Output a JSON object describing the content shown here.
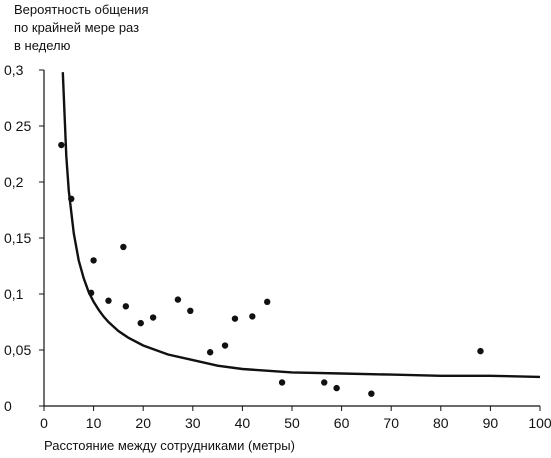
{
  "chart_data": {
    "type": "scatter",
    "ylabel_lines": [
      "Вероятность общения",
      "по крайней мере раз",
      "в неделю"
    ],
    "xlabel": "Расстояние между сотрудниками (метры)",
    "xlim": [
      0,
      100
    ],
    "ylim": [
      0,
      0.3
    ],
    "x_ticks": [
      0,
      10,
      20,
      30,
      40,
      50,
      60,
      70,
      80,
      90,
      100
    ],
    "x_tick_labels": [
      "0",
      "10",
      "20",
      "30",
      "40",
      "50",
      "60",
      "70",
      "80",
      "90",
      "100"
    ],
    "y_ticks": [
      0,
      0.05,
      0.1,
      0.15,
      0.2,
      0.25,
      0.3
    ],
    "y_tick_labels": [
      "0",
      "0,05",
      "0,1",
      "0,15",
      "0,2",
      "0 25",
      "0,3"
    ],
    "grid": false,
    "points": [
      {
        "x": 3.5,
        "y": 0.233
      },
      {
        "x": 5.5,
        "y": 0.185
      },
      {
        "x": 9.5,
        "y": 0.101
      },
      {
        "x": 10,
        "y": 0.13
      },
      {
        "x": 13,
        "y": 0.094
      },
      {
        "x": 16,
        "y": 0.142
      },
      {
        "x": 16.5,
        "y": 0.089
      },
      {
        "x": 19.5,
        "y": 0.074
      },
      {
        "x": 22,
        "y": 0.079
      },
      {
        "x": 27,
        "y": 0.095
      },
      {
        "x": 29.5,
        "y": 0.085
      },
      {
        "x": 33.5,
        "y": 0.048
      },
      {
        "x": 36.5,
        "y": 0.054
      },
      {
        "x": 38.5,
        "y": 0.078
      },
      {
        "x": 42,
        "y": 0.08
      },
      {
        "x": 45,
        "y": 0.093
      },
      {
        "x": 48,
        "y": 0.021
      },
      {
        "x": 56.5,
        "y": 0.021
      },
      {
        "x": 59,
        "y": 0.016
      },
      {
        "x": 66,
        "y": 0.011
      },
      {
        "x": 88,
        "y": 0.049
      }
    ],
    "trend_curve": {
      "x": [
        3.8,
        4.5,
        5,
        6,
        7,
        8,
        9,
        10,
        11,
        12,
        13,
        14,
        15,
        17,
        20,
        25,
        30,
        35,
        40,
        50,
        60,
        70,
        80,
        90,
        100
      ],
      "y": [
        0.298,
        0.223,
        0.192,
        0.154,
        0.13,
        0.114,
        0.102,
        0.093,
        0.086,
        0.08,
        0.075,
        0.071,
        0.067,
        0.061,
        0.054,
        0.046,
        0.041,
        0.036,
        0.033,
        0.03,
        0.029,
        0.028,
        0.027,
        0.027,
        0.026
      ]
    }
  }
}
